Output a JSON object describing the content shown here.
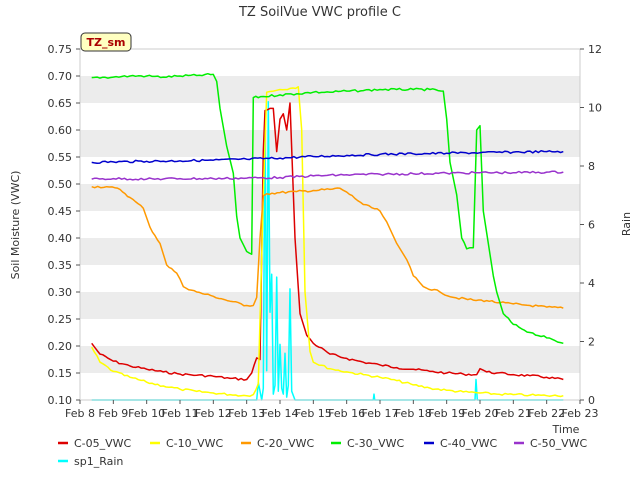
{
  "chart_data": {
    "type": "line",
    "title": "TZ SoilVue VWC profile C",
    "station_label": "TZ_sm",
    "xlabel": "Time",
    "ylabel": "Soil Moisture (VWC)",
    "y2label": "Rain",
    "ylim": [
      0.1,
      0.75
    ],
    "y2lim": [
      0,
      12
    ],
    "xlim": [
      8,
      23
    ],
    "x_ticks": [
      8,
      9,
      10,
      11,
      12,
      13,
      14,
      15,
      16,
      17,
      18,
      19,
      20,
      21,
      22,
      23
    ],
    "x_tick_labels": [
      "Feb 8",
      "Feb 9",
      "Feb 10",
      "Feb 11",
      "Feb 12",
      "Feb 13",
      "Feb 14",
      "Feb 15",
      "Feb 16",
      "Feb 17",
      "Feb 18",
      "Feb 19",
      "Feb 20",
      "Feb 21",
      "Feb 22",
      "Feb 23"
    ],
    "y_ticks": [
      0.1,
      0.15,
      0.2,
      0.25,
      0.3,
      0.35,
      0.4,
      0.45,
      0.5,
      0.55,
      0.6,
      0.65,
      0.7,
      0.75
    ],
    "y_tick_labels": [
      "0.10",
      "0.15",
      "0.20",
      "0.25",
      "0.30",
      "0.35",
      "0.40",
      "0.45",
      "0.50",
      "0.55",
      "0.60",
      "0.65",
      "0.70",
      "0.75"
    ],
    "y2_ticks": [
      0,
      2,
      4,
      6,
      8,
      10,
      12
    ],
    "y2_tick_labels": [
      "0",
      "2",
      "4",
      "6",
      "8",
      "10",
      "12"
    ],
    "grid": "horizontal bands",
    "legend_placement": "bottom",
    "series": [
      {
        "name": "C-05_VWC",
        "color": "#dd0000",
        "axis": "left",
        "points": [
          [
            8.35,
            0.205
          ],
          [
            8.6,
            0.185
          ],
          [
            9.0,
            0.172
          ],
          [
            9.5,
            0.163
          ],
          [
            10.0,
            0.157
          ],
          [
            10.5,
            0.152
          ],
          [
            11.0,
            0.148
          ],
          [
            11.5,
            0.146
          ],
          [
            12.0,
            0.144
          ],
          [
            12.5,
            0.14
          ],
          [
            13.0,
            0.138
          ],
          [
            13.15,
            0.15
          ],
          [
            13.3,
            0.178
          ],
          [
            13.4,
            0.175
          ],
          [
            13.5,
            0.56
          ],
          [
            13.55,
            0.636
          ],
          [
            13.7,
            0.64
          ],
          [
            13.8,
            0.64
          ],
          [
            13.9,
            0.56
          ],
          [
            14.0,
            0.62
          ],
          [
            14.1,
            0.63
          ],
          [
            14.2,
            0.6
          ],
          [
            14.3,
            0.65
          ],
          [
            14.45,
            0.4
          ],
          [
            14.6,
            0.26
          ],
          [
            14.8,
            0.22
          ],
          [
            15.0,
            0.205
          ],
          [
            15.5,
            0.185
          ],
          [
            16.0,
            0.177
          ],
          [
            16.5,
            0.17
          ],
          [
            17.0,
            0.165
          ],
          [
            17.5,
            0.16
          ],
          [
            18.0,
            0.157
          ],
          [
            18.5,
            0.153
          ],
          [
            19.0,
            0.15
          ],
          [
            19.5,
            0.148
          ],
          [
            19.9,
            0.147
          ],
          [
            20.0,
            0.158
          ],
          [
            20.2,
            0.152
          ],
          [
            20.5,
            0.15
          ],
          [
            21.0,
            0.147
          ],
          [
            21.5,
            0.145
          ],
          [
            22.0,
            0.142
          ],
          [
            22.5,
            0.138
          ]
        ]
      },
      {
        "name": "C-10_VWC",
        "color": "#ffff00",
        "axis": "left",
        "points": [
          [
            8.35,
            0.198
          ],
          [
            8.6,
            0.17
          ],
          [
            9.0,
            0.153
          ],
          [
            9.5,
            0.142
          ],
          [
            10.0,
            0.133
          ],
          [
            10.5,
            0.126
          ],
          [
            11.0,
            0.12
          ],
          [
            11.5,
            0.116
          ],
          [
            12.0,
            0.113
          ],
          [
            12.5,
            0.11
          ],
          [
            13.0,
            0.108
          ],
          [
            13.2,
            0.11
          ],
          [
            13.35,
            0.13
          ],
          [
            13.5,
            0.48
          ],
          [
            13.6,
            0.67
          ],
          [
            13.8,
            0.672
          ],
          [
            14.0,
            0.675
          ],
          [
            14.3,
            0.677
          ],
          [
            14.55,
            0.68
          ],
          [
            14.65,
            0.6
          ],
          [
            14.75,
            0.3
          ],
          [
            14.9,
            0.19
          ],
          [
            15.0,
            0.17
          ],
          [
            15.5,
            0.158
          ],
          [
            16.0,
            0.152
          ],
          [
            16.5,
            0.147
          ],
          [
            17.0,
            0.142
          ],
          [
            17.5,
            0.136
          ],
          [
            18.0,
            0.128
          ],
          [
            18.5,
            0.122
          ],
          [
            19.0,
            0.118
          ],
          [
            19.5,
            0.115
          ],
          [
            20.0,
            0.113
          ],
          [
            20.5,
            0.111
          ],
          [
            21.0,
            0.11
          ],
          [
            21.5,
            0.109
          ],
          [
            22.0,
            0.108
          ],
          [
            22.5,
            0.108
          ]
        ]
      },
      {
        "name": "C-20_VWC",
        "color": "#ff9900",
        "axis": "left",
        "points": [
          [
            8.35,
            0.495
          ],
          [
            8.8,
            0.495
          ],
          [
            9.2,
            0.49
          ],
          [
            9.5,
            0.475
          ],
          [
            9.9,
            0.455
          ],
          [
            10.1,
            0.42
          ],
          [
            10.4,
            0.39
          ],
          [
            10.6,
            0.35
          ],
          [
            10.9,
            0.335
          ],
          [
            11.1,
            0.31
          ],
          [
            11.5,
            0.3
          ],
          [
            12.0,
            0.292
          ],
          [
            12.5,
            0.283
          ],
          [
            13.0,
            0.275
          ],
          [
            13.2,
            0.275
          ],
          [
            13.3,
            0.29
          ],
          [
            13.4,
            0.4
          ],
          [
            13.5,
            0.478
          ],
          [
            13.6,
            0.482
          ],
          [
            14.0,
            0.484
          ],
          [
            14.5,
            0.486
          ],
          [
            15.0,
            0.488
          ],
          [
            15.5,
            0.49
          ],
          [
            15.8,
            0.492
          ],
          [
            16.0,
            0.485
          ],
          [
            16.5,
            0.462
          ],
          [
            17.0,
            0.45
          ],
          [
            17.2,
            0.43
          ],
          [
            17.5,
            0.39
          ],
          [
            17.8,
            0.36
          ],
          [
            18.0,
            0.33
          ],
          [
            18.3,
            0.31
          ],
          [
            18.8,
            0.3
          ],
          [
            19.2,
            0.29
          ],
          [
            19.8,
            0.285
          ],
          [
            20.2,
            0.284
          ],
          [
            20.6,
            0.28
          ],
          [
            21.0,
            0.278
          ],
          [
            21.5,
            0.275
          ],
          [
            22.0,
            0.272
          ],
          [
            22.5,
            0.27
          ]
        ]
      },
      {
        "name": "C-30_VWC",
        "color": "#00ee00",
        "axis": "left",
        "points": [
          [
            8.35,
            0.697
          ],
          [
            9.0,
            0.698
          ],
          [
            9.5,
            0.7
          ],
          [
            10.0,
            0.7
          ],
          [
            10.5,
            0.698
          ],
          [
            11.0,
            0.7
          ],
          [
            11.5,
            0.701
          ],
          [
            12.0,
            0.703
          ],
          [
            12.1,
            0.69
          ],
          [
            12.2,
            0.64
          ],
          [
            12.4,
            0.57
          ],
          [
            12.6,
            0.52
          ],
          [
            12.7,
            0.44
          ],
          [
            12.8,
            0.4
          ],
          [
            13.0,
            0.375
          ],
          [
            13.15,
            0.37
          ],
          [
            13.2,
            0.66
          ],
          [
            13.5,
            0.662
          ],
          [
            14.0,
            0.665
          ],
          [
            14.5,
            0.667
          ],
          [
            15.0,
            0.67
          ],
          [
            15.5,
            0.67
          ],
          [
            16.0,
            0.672
          ],
          [
            16.5,
            0.673
          ],
          [
            17.0,
            0.675
          ],
          [
            17.5,
            0.675
          ],
          [
            18.0,
            0.675
          ],
          [
            18.5,
            0.675
          ],
          [
            18.9,
            0.672
          ],
          [
            19.0,
            0.62
          ],
          [
            19.1,
            0.54
          ],
          [
            19.3,
            0.48
          ],
          [
            19.45,
            0.4
          ],
          [
            19.6,
            0.38
          ],
          [
            19.8,
            0.382
          ],
          [
            19.9,
            0.6
          ],
          [
            20.0,
            0.608
          ],
          [
            20.1,
            0.45
          ],
          [
            20.25,
            0.39
          ],
          [
            20.4,
            0.33
          ],
          [
            20.5,
            0.3
          ],
          [
            20.7,
            0.26
          ],
          [
            21.0,
            0.24
          ],
          [
            21.5,
            0.225
          ],
          [
            22.0,
            0.215
          ],
          [
            22.5,
            0.205
          ]
        ]
      },
      {
        "name": "C-40_VWC",
        "color": "#0000cc",
        "axis": "left",
        "points": [
          [
            8.35,
            0.54
          ],
          [
            9.0,
            0.541
          ],
          [
            10.0,
            0.542
          ],
          [
            11.0,
            0.543
          ],
          [
            12.0,
            0.544
          ],
          [
            13.0,
            0.546
          ],
          [
            14.0,
            0.548
          ],
          [
            15.0,
            0.551
          ],
          [
            16.0,
            0.553
          ],
          [
            17.0,
            0.555
          ],
          [
            18.0,
            0.556
          ],
          [
            19.0,
            0.557
          ],
          [
            20.0,
            0.558
          ],
          [
            21.0,
            0.559
          ],
          [
            22.0,
            0.56
          ],
          [
            22.5,
            0.56
          ]
        ]
      },
      {
        "name": "C-50_VWC",
        "color": "#9933cc",
        "axis": "left",
        "points": [
          [
            8.35,
            0.509
          ],
          [
            9.0,
            0.51
          ],
          [
            10.0,
            0.509
          ],
          [
            11.0,
            0.51
          ],
          [
            12.0,
            0.51
          ],
          [
            13.0,
            0.511
          ],
          [
            14.0,
            0.512
          ],
          [
            15.0,
            0.515
          ],
          [
            16.0,
            0.517
          ],
          [
            17.0,
            0.518
          ],
          [
            18.0,
            0.519
          ],
          [
            19.0,
            0.52
          ],
          [
            20.0,
            0.521
          ],
          [
            21.0,
            0.521
          ],
          [
            22.0,
            0.522
          ],
          [
            22.5,
            0.522
          ]
        ]
      },
      {
        "name": "sp1_Rain",
        "color": "#00ffff",
        "axis": "right",
        "points": [
          [
            8.35,
            0
          ],
          [
            13.3,
            0
          ],
          [
            13.35,
            0.6
          ],
          [
            13.45,
            0
          ],
          [
            13.5,
            0.4
          ],
          [
            13.55,
            9.8
          ],
          [
            13.6,
            1.0
          ],
          [
            13.65,
            10.2
          ],
          [
            13.7,
            3.0
          ],
          [
            13.75,
            4.3
          ],
          [
            13.8,
            0.2
          ],
          [
            13.85,
            0.5
          ],
          [
            13.9,
            4.2
          ],
          [
            13.95,
            0.3
          ],
          [
            14.0,
            1.9
          ],
          [
            14.05,
            0.4
          ],
          [
            14.1,
            0.2
          ],
          [
            14.15,
            1.6
          ],
          [
            14.2,
            0.1
          ],
          [
            14.25,
            0.5
          ],
          [
            14.3,
            3.8
          ],
          [
            14.35,
            0.3
          ],
          [
            14.45,
            0
          ],
          [
            16.8,
            0
          ],
          [
            16.82,
            0.2
          ],
          [
            16.84,
            0
          ],
          [
            19.85,
            0
          ],
          [
            19.88,
            0.7
          ],
          [
            19.92,
            0
          ],
          [
            22.5,
            0
          ]
        ]
      }
    ]
  }
}
